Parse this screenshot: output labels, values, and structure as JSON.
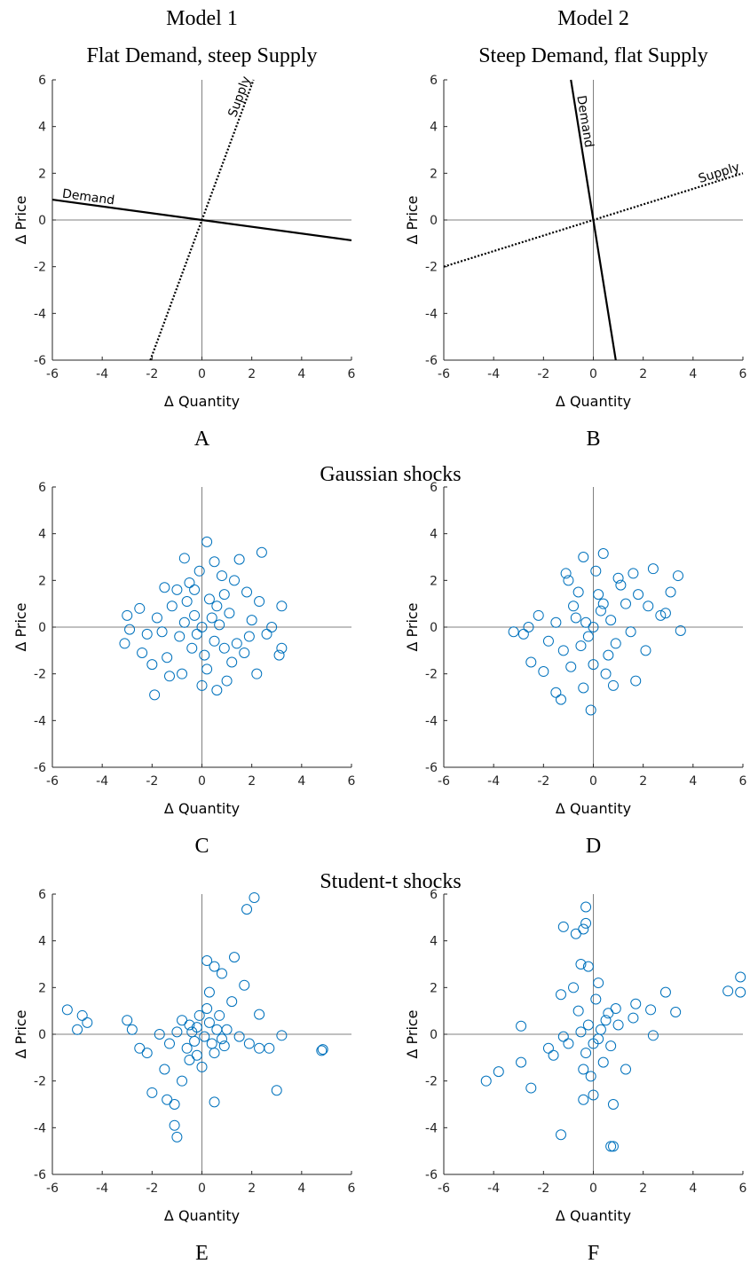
{
  "chart_data": [
    {
      "type": "line",
      "title": "Model 1",
      "subtitle": "Flat Demand, steep Supply",
      "label": "A",
      "xlabel": "Δ Quantity",
      "ylabel": "Δ Price",
      "xlim": [
        -6,
        6
      ],
      "ylim": [
        -6,
        6
      ],
      "xticks": [
        -6,
        -4,
        -2,
        0,
        2,
        4,
        6
      ],
      "yticks": [
        -6,
        -4,
        -2,
        0,
        2,
        4,
        6
      ],
      "zero_lines": true,
      "series": [
        {
          "name": "Demand",
          "color": "#000000",
          "style": "solid",
          "x": [
            -6,
            6
          ],
          "values": [
            0.87,
            -0.87
          ]
        },
        {
          "name": "Supply",
          "color": "#000000",
          "style": "dotted",
          "x": [
            -2.07,
            2.07
          ],
          "values": [
            -6,
            6
          ]
        }
      ]
    },
    {
      "type": "line",
      "title": "Model 2",
      "subtitle": "Steep Demand, flat Supply",
      "label": "B",
      "xlabel": "Δ Quantity",
      "ylabel": "Δ Price",
      "xlim": [
        -6,
        6
      ],
      "ylim": [
        -6,
        6
      ],
      "xticks": [
        -6,
        -4,
        -2,
        0,
        2,
        4,
        6
      ],
      "yticks": [
        -6,
        -4,
        -2,
        0,
        2,
        4,
        6
      ],
      "zero_lines": true,
      "series": [
        {
          "name": "Demand",
          "color": "#000000",
          "style": "solid",
          "x": [
            -0.9,
            0.9
          ],
          "values": [
            6,
            -6
          ]
        },
        {
          "name": "Supply",
          "color": "#000000",
          "style": "dotted",
          "x": [
            -6,
            6
          ],
          "values": [
            -2,
            2
          ]
        }
      ]
    },
    {
      "type": "scatter",
      "heading": "Gaussian shocks",
      "label": "C",
      "color": "#0072bd",
      "xlabel": "Δ Quantity",
      "ylabel": "Δ Price",
      "xlim": [
        -6,
        6
      ],
      "ylim": [
        -6,
        6
      ],
      "xticks": [
        -6,
        -4,
        -2,
        0,
        2,
        4,
        6
      ],
      "yticks": [
        -6,
        -4,
        -2,
        0,
        2,
        4,
        6
      ],
      "zero_lines": true,
      "x": [
        0.2,
        2.4,
        -0.7,
        1.5,
        0.5,
        -3,
        -3.1,
        3.2,
        3.2,
        3.1,
        -1.9,
        0.6,
        2.2,
        -1.3,
        0,
        1.2,
        -2,
        -1.5,
        1.8,
        -0.5,
        0.8,
        2,
        -2.2,
        2.6,
        -2.5,
        1,
        -0.8,
        0.3,
        -0.3,
        0.5,
        -0.9,
        1.1,
        -1.2,
        0.1,
        0.7,
        -0.4,
        1.4,
        -1.6,
        0.9,
        -0.6,
        0,
        0.4,
        -0.2,
        1.7,
        -1.8,
        2.3,
        -2.4,
        0.2,
        -1,
        1.3,
        -0.1,
        2.8,
        -2.9,
        0.6,
        -0.7,
        1.9,
        -1.4,
        0.9,
        -0.3
      ],
      "values": [
        3.65,
        3.2,
        2.95,
        2.9,
        2.8,
        0.5,
        -0.7,
        0.9,
        -0.9,
        -1.2,
        -2.9,
        -2.7,
        -2,
        -2.1,
        -2.5,
        -1.5,
        -1.6,
        1.7,
        1.5,
        1.9,
        2.2,
        0.3,
        -0.3,
        -0.3,
        0.8,
        -2.3,
        -2,
        1.2,
        0.5,
        -0.6,
        -0.4,
        0.6,
        0.9,
        -1.2,
        0.1,
        -0.9,
        -0.7,
        -0.2,
        1.4,
        1.1,
        0,
        0.4,
        -0.3,
        -1.1,
        0.4,
        1.1,
        -1.1,
        -1.8,
        1.6,
        2,
        2.4,
        0,
        -0.1,
        0.9,
        0.2,
        -0.4,
        -1.3,
        -0.9,
        1.6
      ]
    },
    {
      "type": "scatter",
      "label": "D",
      "color": "#0072bd",
      "xlabel": "Δ Quantity",
      "ylabel": "Δ Price",
      "xlim": [
        -6,
        6
      ],
      "ylim": [
        -6,
        6
      ],
      "xticks": [
        -6,
        -4,
        -2,
        0,
        2,
        4,
        6
      ],
      "yticks": [
        -6,
        -4,
        -2,
        0,
        2,
        4,
        6
      ],
      "zero_lines": true,
      "x": [
        0.4,
        -0.4,
        2.4,
        3.4,
        -3.2,
        3.5,
        -0.1,
        -1.3,
        -1.5,
        1.7,
        -2.5,
        2.1,
        -2.2,
        1,
        -1,
        0.2,
        -0.5,
        0.7,
        -0.3,
        1.3,
        -1.2,
        0,
        0.5,
        -0.8,
        1.8,
        -1.8,
        2.7,
        -2.8,
        0.9,
        -0.6,
        0.3,
        -0.2,
        1.5,
        -1.5,
        0.1,
        2.2,
        -2,
        0.6,
        -0.9,
        1.1,
        0,
        2.9,
        -2.6,
        1.6,
        -1.1,
        0.8,
        -0.4,
        3.1,
        -0.7,
        0.4
      ],
      "values": [
        3.15,
        3,
        2.5,
        2.2,
        -0.2,
        -0.15,
        -3.55,
        -3.1,
        -2.8,
        -2.3,
        -1.5,
        -1,
        0.5,
        2.1,
        2,
        1.4,
        -0.8,
        0.3,
        0.2,
        1,
        -1,
        -1.6,
        -2,
        0.9,
        1.4,
        -0.6,
        0.5,
        -0.3,
        -0.7,
        1.5,
        0.7,
        -0.4,
        -0.2,
        0.2,
        2.4,
        0.9,
        -1.9,
        -1.2,
        -1.7,
        1.8,
        0,
        0.6,
        0,
        2.3,
        2.3,
        -2.5,
        -2.6,
        1.5,
        0.4,
        1
      ]
    },
    {
      "type": "scatter",
      "heading": "Student-t shocks",
      "label": "E",
      "color": "#0072bd",
      "xlabel": "Δ Quantity",
      "ylabel": "Δ Price",
      "xlim": [
        -6,
        6
      ],
      "ylim": [
        -6,
        6
      ],
      "xticks": [
        -6,
        -4,
        -2,
        0,
        2,
        4,
        6
      ],
      "yticks": [
        -6,
        -4,
        -2,
        0,
        2,
        4,
        6
      ],
      "zero_lines": true,
      "x": [
        2.1,
        1.8,
        1.3,
        0.2,
        0.5,
        0.8,
        -5.4,
        -5,
        -4.8,
        -4.6,
        -2.5,
        -2,
        -1.4,
        -1.1,
        -1.1,
        -1,
        0.5,
        3,
        4.85,
        4.8,
        3.2,
        2.3,
        2.3,
        -0.8,
        -1.5,
        -0.5,
        0.4,
        -0.2,
        0.1,
        0.3,
        -0.4,
        0.7,
        -0.6,
        0.2,
        1,
        -1,
        1.5,
        -1.7,
        0.5,
        -0.3,
        0.6,
        -0.1,
        1.2,
        -0.8,
        0,
        0.9,
        -1.3,
        1.7,
        -2.8,
        -3,
        -2.2,
        2.7,
        1.9,
        0.3,
        -0.2,
        0.8,
        -0.5
      ],
      "values": [
        5.85,
        5.35,
        3.3,
        3.15,
        2.9,
        2.6,
        1.05,
        0.2,
        0.8,
        0.5,
        -0.6,
        -2.5,
        -2.8,
        -3,
        -3.9,
        -4.4,
        -2.9,
        -2.4,
        -0.65,
        -0.7,
        -0.05,
        -0.6,
        0.85,
        -2,
        -1.5,
        -1.1,
        -0.4,
        0.3,
        -0.1,
        0.5,
        0.1,
        0.8,
        -0.6,
        1.1,
        0.2,
        0.1,
        -0.1,
        0,
        -0.8,
        -0.3,
        0.2,
        0.8,
        1.4,
        0.6,
        -1.4,
        -0.5,
        -0.4,
        2.1,
        0.2,
        0.6,
        -0.8,
        -0.6,
        -0.4,
        1.8,
        -0.9,
        -0.2,
        0.4
      ]
    },
    {
      "type": "scatter",
      "label": "F",
      "color": "#0072bd",
      "xlabel": "Δ Quantity",
      "ylabel": "Δ Price",
      "xlim": [
        -6,
        6
      ],
      "ylim": [
        -6,
        6
      ],
      "xticks": [
        -6,
        -4,
        -2,
        0,
        2,
        4,
        6
      ],
      "yticks": [
        -6,
        -4,
        -2,
        0,
        2,
        4,
        6
      ],
      "zero_lines": true,
      "x": [
        -0.3,
        -0.3,
        -0.4,
        -0.7,
        -1.2,
        5.9,
        5.9,
        5.4,
        2.9,
        2.3,
        3.3,
        -1.3,
        -0.5,
        -0.2,
        -4.3,
        -3.8,
        -2.5,
        -2.9,
        -2.9,
        -1.3,
        0.7,
        0.8,
        0.8,
        -0.4,
        0,
        1.3,
        2.4,
        -1.6,
        -1,
        -0.2,
        0.2,
        0.5,
        -0.6,
        0.1,
        -0.3,
        0.4,
        1,
        -1.2,
        0.7,
        -0.5,
        0.3,
        0,
        1.6,
        -1.8,
        0.9,
        -0.8,
        0.2,
        -0.1,
        1.7,
        -0.4,
        0.6
      ],
      "values": [
        5.45,
        4.75,
        4.5,
        4.3,
        4.6,
        2.45,
        1.8,
        1.85,
        1.8,
        1.05,
        0.95,
        1.7,
        3,
        2.9,
        -2,
        -1.6,
        -2.3,
        0.35,
        -1.2,
        -4.3,
        -4.8,
        -4.8,
        -3,
        -2.8,
        -2.6,
        -1.5,
        -0.05,
        -0.9,
        -0.4,
        0.4,
        -0.2,
        0.6,
        1,
        1.5,
        -0.8,
        -1.2,
        0.4,
        -0.1,
        -0.5,
        0.1,
        0.2,
        -0.4,
        0.7,
        -0.6,
        1.1,
        2,
        2.2,
        -1.8,
        1.3,
        -1.5,
        0.9
      ]
    }
  ]
}
